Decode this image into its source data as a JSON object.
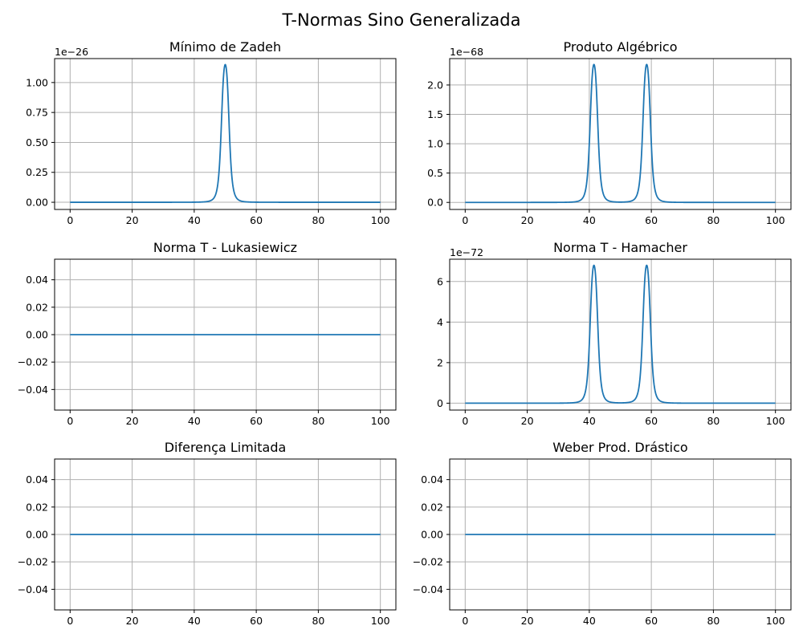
{
  "figure": {
    "suptitle": "T-Normas Sino Generalizada",
    "line_color": "#1f77b4",
    "grid_color": "#b0b0b0"
  },
  "chart_data": [
    {
      "type": "line",
      "title": "Mínimo de Zadeh",
      "xlabel": "",
      "ylabel": "",
      "xlim": [
        -5,
        105
      ],
      "ylim": [
        -0.06,
        1.2
      ],
      "xticks": [
        0,
        20,
        40,
        60,
        80,
        100
      ],
      "xtick_labels": [
        "0",
        "20",
        "40",
        "60",
        "80",
        "100"
      ],
      "yticks": [
        0,
        0.25,
        0.5,
        0.75,
        1.0
      ],
      "ytick_labels": [
        "0.00",
        "0.25",
        "0.50",
        "0.75",
        "1.00"
      ],
      "offset_label": "1e−26",
      "grid": true,
      "series": [
        {
          "peaks": [
            {
              "center": 50,
              "height": 1.15
            }
          ],
          "x": [
            0,
            30,
            38,
            42,
            45,
            47,
            48,
            49,
            49.5,
            50,
            50.5,
            51,
            52,
            53,
            55,
            58,
            62,
            70,
            100
          ],
          "y": [
            0,
            0,
            0.005,
            0.03,
            0.09,
            0.2,
            0.32,
            0.55,
            0.8,
            1.15,
            0.8,
            0.55,
            0.32,
            0.2,
            0.09,
            0.03,
            0.005,
            0,
            0
          ]
        }
      ]
    },
    {
      "type": "line",
      "title": "Produto Algébrico",
      "xlabel": "",
      "ylabel": "",
      "xlim": [
        -5,
        105
      ],
      "ylim": [
        -0.12,
        2.45
      ],
      "xticks": [
        0,
        20,
        40,
        60,
        80,
        100
      ],
      "xtick_labels": [
        "0",
        "20",
        "40",
        "60",
        "80",
        "100"
      ],
      "yticks": [
        0,
        0.5,
        1.0,
        1.5,
        2.0
      ],
      "ytick_labels": [
        "0.0",
        "0.5",
        "1.0",
        "1.5",
        "2.0"
      ],
      "offset_label": "1e−68",
      "grid": true,
      "series": [
        {
          "peaks": [
            {
              "center": 41.5,
              "height": 2.35
            },
            {
              "center": 58.5,
              "height": 2.35
            }
          ],
          "x": [
            0,
            30,
            35,
            38,
            39.5,
            40.5,
            41,
            41.5,
            42,
            42.5,
            43,
            44,
            46,
            50,
            54,
            56,
            57,
            57.5,
            58,
            58.5,
            59,
            59.5,
            60.5,
            62,
            65,
            70,
            100
          ],
          "y": [
            0,
            0,
            0.01,
            0.08,
            0.3,
            0.9,
            1.6,
            2.35,
            1.4,
            0.6,
            0.25,
            0.06,
            0.01,
            0,
            0.01,
            0.06,
            0.25,
            0.6,
            1.4,
            2.35,
            1.6,
            0.9,
            0.3,
            0.08,
            0.02,
            0,
            0
          ]
        }
      ]
    },
    {
      "type": "line",
      "title": "Norma T - Lukasiewicz",
      "xlabel": "",
      "ylabel": "",
      "xlim": [
        -5,
        105
      ],
      "ylim": [
        -0.055,
        0.055
      ],
      "xticks": [
        0,
        20,
        40,
        60,
        80,
        100
      ],
      "xtick_labels": [
        "0",
        "20",
        "40",
        "60",
        "80",
        "100"
      ],
      "yticks": [
        -0.04,
        -0.02,
        0.0,
        0.02,
        0.04
      ],
      "ytick_labels": [
        "−0.04",
        "−0.02",
        "0.00",
        "0.02",
        "0.04"
      ],
      "offset_label": "",
      "grid": true,
      "series": [
        {
          "x": [
            0,
            100
          ],
          "y": [
            0,
            0
          ]
        }
      ]
    },
    {
      "type": "line",
      "title": "Norma T - Hamacher",
      "xlabel": "",
      "ylabel": "",
      "xlim": [
        -5,
        105
      ],
      "ylim": [
        -0.34,
        7.1
      ],
      "xticks": [
        0,
        20,
        40,
        60,
        80,
        100
      ],
      "xtick_labels": [
        "0",
        "20",
        "40",
        "60",
        "80",
        "100"
      ],
      "yticks": [
        0,
        2,
        4,
        6
      ],
      "ytick_labels": [
        "0",
        "2",
        "4",
        "6"
      ],
      "offset_label": "1e−72",
      "grid": true,
      "series": [
        {
          "peaks": [
            {
              "center": 41.5,
              "height": 6.8
            },
            {
              "center": 58.5,
              "height": 6.8
            }
          ],
          "x": [
            0,
            30,
            35,
            38,
            39.5,
            40.5,
            41,
            41.5,
            42,
            42.5,
            43,
            44,
            46,
            50,
            54,
            56,
            57,
            57.5,
            58,
            58.5,
            59,
            59.5,
            60.5,
            62,
            65,
            70,
            100
          ],
          "y": [
            0,
            0,
            0.03,
            0.25,
            0.9,
            2.6,
            4.6,
            6.8,
            4.0,
            1.7,
            0.7,
            0.17,
            0.03,
            0,
            0.03,
            0.17,
            0.7,
            1.7,
            4.0,
            6.8,
            4.6,
            2.6,
            0.9,
            0.25,
            0.06,
            0,
            0
          ]
        }
      ]
    },
    {
      "type": "line",
      "title": "Diferença Limitada",
      "xlabel": "",
      "ylabel": "",
      "xlim": [
        -5,
        105
      ],
      "ylim": [
        -0.055,
        0.055
      ],
      "xticks": [
        0,
        20,
        40,
        60,
        80,
        100
      ],
      "xtick_labels": [
        "0",
        "20",
        "40",
        "60",
        "80",
        "100"
      ],
      "yticks": [
        -0.04,
        -0.02,
        0.0,
        0.02,
        0.04
      ],
      "ytick_labels": [
        "−0.04",
        "−0.02",
        "0.00",
        "0.02",
        "0.04"
      ],
      "offset_label": "",
      "grid": true,
      "series": [
        {
          "x": [
            0,
            100
          ],
          "y": [
            0,
            0
          ]
        }
      ]
    },
    {
      "type": "line",
      "title": "Weber Prod. Drástico",
      "xlabel": "",
      "ylabel": "",
      "xlim": [
        -5,
        105
      ],
      "ylim": [
        -0.055,
        0.055
      ],
      "xticks": [
        0,
        20,
        40,
        60,
        80,
        100
      ],
      "xtick_labels": [
        "0",
        "20",
        "40",
        "60",
        "80",
        "100"
      ],
      "yticks": [
        -0.04,
        -0.02,
        0.0,
        0.02,
        0.04
      ],
      "ytick_labels": [
        "−0.04",
        "−0.02",
        "0.00",
        "0.02",
        "0.04"
      ],
      "offset_label": "",
      "grid": true,
      "series": [
        {
          "x": [
            0,
            100
          ],
          "y": [
            0,
            0
          ]
        }
      ]
    }
  ]
}
